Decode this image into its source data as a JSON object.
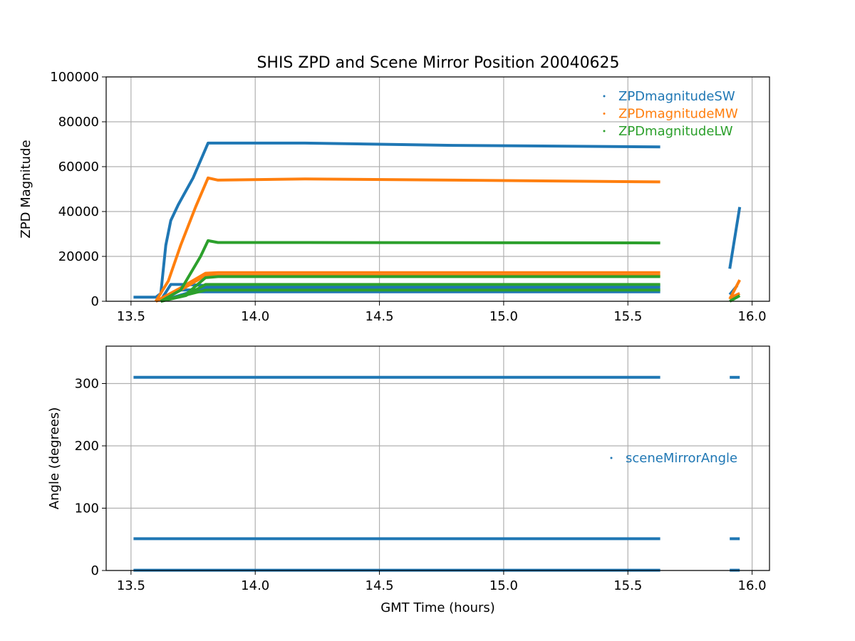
{
  "figure": {
    "title": "SHIS ZPD and Scene Mirror Position 20040625"
  },
  "colors": {
    "sw": "#1f77b4",
    "mw": "#ff7f0e",
    "lw": "#2ca02c",
    "grid": "#b0b0b0",
    "axes": "#000000"
  },
  "chart_data": [
    {
      "type": "scatter",
      "title": "SHIS ZPD and Scene Mirror Position 20040625",
      "xlabel": "",
      "ylabel": "ZPD Magnitude",
      "xlim": [
        13.4,
        16.07
      ],
      "ylim": [
        0,
        100000
      ],
      "xticks": [
        "13.5",
        "14.0",
        "14.5",
        "15.0",
        "15.5",
        "16.0"
      ],
      "yticks": [
        "0",
        "20000",
        "40000",
        "60000",
        "80000",
        "100000"
      ],
      "grid": true,
      "legend_position": "top-right",
      "marker": "point",
      "series": [
        {
          "name": "ZPDmagnitudeSW",
          "color": "#1f77b4",
          "segments": [
            [
              [
                13.51,
                1800
              ],
              [
                13.6,
                1800
              ],
              [
                13.62,
                3500
              ],
              [
                13.64,
                25000
              ],
              [
                13.66,
                36000
              ],
              [
                13.69,
                43000
              ],
              [
                13.75,
                55000
              ],
              [
                13.81,
                70500
              ],
              [
                14.2,
                70500
              ],
              [
                14.8,
                69500
              ],
              [
                15.63,
                68800
              ]
            ],
            [
              [
                13.62,
                500
              ],
              [
                13.66,
                7500
              ],
              [
                13.72,
                7500
              ],
              [
                13.8,
                7000
              ],
              [
                15.63,
                7000
              ]
            ],
            [
              [
                13.62,
                300
              ],
              [
                13.7,
                5000
              ],
              [
                13.8,
                5200
              ],
              [
                15.63,
                5200
              ]
            ],
            [
              [
                13.62,
                200
              ],
              [
                13.75,
                4200
              ],
              [
                15.63,
                4200
              ]
            ],
            [
              [
                13.62,
                0
              ],
              [
                13.8,
                6200
              ],
              [
                15.63,
                6200
              ]
            ],
            [
              [
                15.91,
                14500
              ],
              [
                15.95,
                42000
              ]
            ],
            [
              [
                15.91,
                3000
              ],
              [
                15.94,
                7000
              ]
            ]
          ]
        },
        {
          "name": "ZPDmagnitudeMW",
          "color": "#ff7f0e",
          "segments": [
            [
              [
                13.6,
                0
              ],
              [
                13.65,
                9000
              ],
              [
                13.7,
                25000
              ],
              [
                13.76,
                42000
              ],
              [
                13.81,
                55000
              ],
              [
                13.85,
                54000
              ],
              [
                14.2,
                54500
              ],
              [
                14.8,
                54000
              ],
              [
                15.63,
                53200
              ]
            ],
            [
              [
                13.6,
                0
              ],
              [
                13.7,
                6000
              ],
              [
                13.8,
                12500
              ],
              [
                13.85,
                12800
              ],
              [
                15.63,
                12800
              ]
            ],
            [
              [
                13.6,
                0
              ],
              [
                13.7,
                5000
              ],
              [
                13.8,
                11500
              ],
              [
                15.63,
                11500
              ]
            ],
            [
              [
                15.91,
                1000
              ],
              [
                15.95,
                9500
              ]
            ],
            [
              [
                15.91,
                1500
              ],
              [
                15.95,
                3500
              ]
            ]
          ]
        },
        {
          "name": "ZPDmagnitudeLW",
          "color": "#2ca02c",
          "segments": [
            [
              [
                13.62,
                0
              ],
              [
                13.7,
                5000
              ],
              [
                13.78,
                20000
              ],
              [
                13.81,
                27000
              ],
              [
                13.85,
                26200
              ],
              [
                14.2,
                26200
              ],
              [
                15.63,
                26000
              ]
            ],
            [
              [
                13.62,
                0
              ],
              [
                13.72,
                3000
              ],
              [
                13.8,
                10500
              ],
              [
                13.85,
                11000
              ],
              [
                15.63,
                11000
              ]
            ],
            [
              [
                13.62,
                0
              ],
              [
                13.72,
                2500
              ],
              [
                13.8,
                7500
              ],
              [
                15.63,
                7500
              ]
            ],
            [
              [
                13.62,
                0
              ],
              [
                13.8,
                5000
              ],
              [
                15.63,
                5000
              ]
            ],
            [
              [
                15.91,
                0
              ],
              [
                15.95,
                2500
              ]
            ]
          ]
        }
      ]
    },
    {
      "type": "scatter",
      "title": "",
      "xlabel": "GMT Time (hours)",
      "ylabel": "Angle (degrees)",
      "xlim": [
        13.4,
        16.07
      ],
      "ylim": [
        0,
        360
      ],
      "xticks": [
        "13.5",
        "14.0",
        "14.5",
        "15.0",
        "15.5",
        "16.0"
      ],
      "yticks": [
        "0",
        "100",
        "200",
        "300"
      ],
      "grid": true,
      "legend_position": "center-right",
      "marker": "point",
      "series": [
        {
          "name": "sceneMirrorAngle",
          "color": "#1f77b4",
          "segments": [
            [
              [
                13.51,
                310
              ],
              [
                15.63,
                310
              ]
            ],
            [
              [
                13.51,
                51
              ],
              [
                15.63,
                51
              ]
            ],
            [
              [
                13.51,
                0.5
              ],
              [
                15.63,
                0.5
              ]
            ],
            [
              [
                15.91,
                310
              ],
              [
                15.95,
                310
              ]
            ],
            [
              [
                15.91,
                51
              ],
              [
                15.95,
                51
              ]
            ],
            [
              [
                15.91,
                0.5
              ],
              [
                15.95,
                0.5
              ]
            ]
          ]
        }
      ]
    }
  ]
}
